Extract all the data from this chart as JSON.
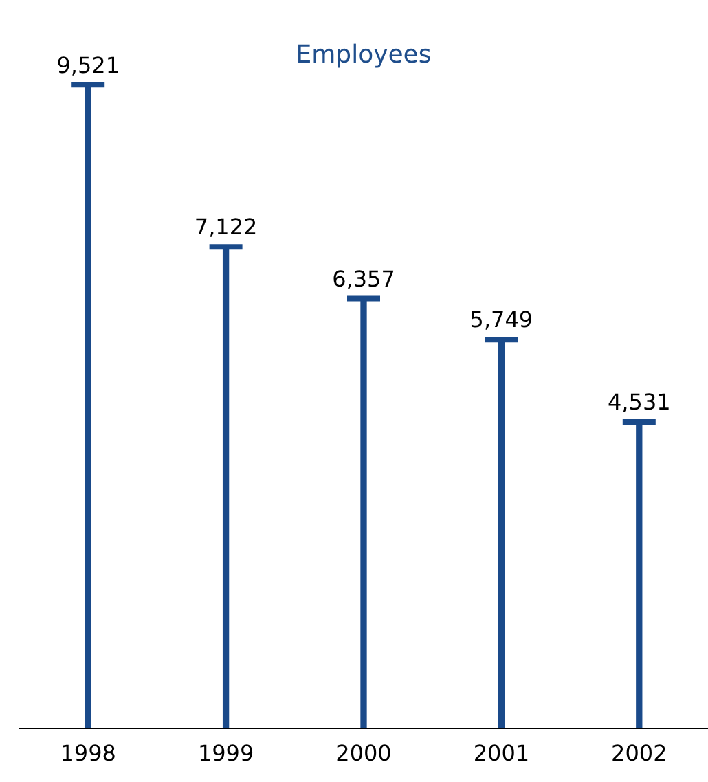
{
  "chart_data": {
    "type": "bar",
    "title": "Employees",
    "categories": [
      "1998",
      "1999",
      "2000",
      "2001",
      "2002"
    ],
    "values": [
      9521,
      7122,
      6357,
      5749,
      4531
    ],
    "color": "#1a4a8a",
    "data_labels": true,
    "value_labels": [
      "9,521",
      "7,122",
      "6,357",
      "5,749",
      "4,531"
    ]
  }
}
